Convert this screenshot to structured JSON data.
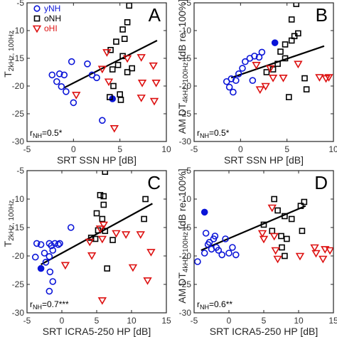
{
  "colors": {
    "yNH": "#0a14d8",
    "oNH": "#000000",
    "oHI": "#dd1111",
    "fit": "#000000",
    "axis": "#262626"
  },
  "legend": {
    "placement": "top-left of panel A",
    "entries": [
      {
        "label": "yNH",
        "marker": "circle",
        "color": "#0a14d8"
      },
      {
        "label": "oNH",
        "marker": "square",
        "color": "#000000"
      },
      {
        "label": "oHI",
        "marker": "triangle-down",
        "color": "#dd1111"
      }
    ]
  },
  "chart_data": [
    {
      "type": "scatter",
      "panel": "A",
      "xlabel": "SRT SSN HP [dB]",
      "ylabel": "AM DT",
      "ylabel_sub1": "2kHz, 100Hz",
      "ylabel_tail": "",
      "xlim": [
        -5,
        10
      ],
      "ylim": [
        -30,
        -5
      ],
      "xticks": [
        -5,
        0,
        5,
        10
      ],
      "yticks": [
        -30,
        -25,
        -20,
        -15,
        -10,
        -5
      ],
      "annotation": {
        "prefix": "r",
        "sub": "NH",
        "rest": "=0.5*"
      },
      "fit": [
        [
          -1,
          -20.3
        ],
        [
          9,
          -11.8
        ]
      ],
      "series": [
        {
          "name": "yNH",
          "marker": "circle",
          "points": [
            [
              -2.3,
              -18.0
            ],
            [
              -1.8,
              -19.2
            ],
            [
              -1.5,
              -17.8
            ],
            [
              -1.3,
              -20.1
            ],
            [
              -1.0,
              -18.0
            ],
            [
              -0.8,
              -21.0
            ],
            [
              -0.2,
              -15.6
            ],
            [
              0.0,
              -23.0
            ],
            [
              1.5,
              -16.0
            ],
            [
              2.0,
              -18.0
            ],
            [
              2.5,
              -18.5
            ],
            [
              3.1,
              -26.2
            ]
          ]
        },
        {
          "name": "yNH filled",
          "marker": "circle-filled",
          "points": [
            [
              4.2,
              -22.3
            ]
          ]
        },
        {
          "name": "oNH",
          "marker": "square",
          "points": [
            [
              4.0,
              -13.5
            ],
            [
              4.2,
              -17.0
            ],
            [
              4.6,
              -12.0
            ],
            [
              4.8,
              -16.2
            ],
            [
              5.3,
              -14.6
            ],
            [
              5.5,
              -11.5
            ],
            [
              5.8,
              -17.5
            ],
            [
              6.3,
              -16.8
            ],
            [
              6.0,
              -5.5
            ],
            [
              5.8,
              -8.5
            ],
            [
              5.3,
              -9.8
            ],
            [
              4.3,
              -20.0
            ],
            [
              3.9,
              -22.0
            ],
            [
              5.0,
              -21.5
            ],
            [
              5.1,
              -22.5
            ]
          ]
        },
        {
          "name": "oHI",
          "marker": "triangle-down",
          "points": [
            [
              0.3,
              -21.6
            ],
            [
              3.1,
              -16.9
            ],
            [
              3.6,
              -13.9
            ],
            [
              3.8,
              -19.2
            ],
            [
              5.8,
              -15.0
            ],
            [
              7.3,
              -14.8
            ],
            [
              7.4,
              -19.4
            ],
            [
              7.3,
              -22.1
            ],
            [
              8.6,
              -16.3
            ],
            [
              8.9,
              -19.4
            ],
            [
              8.7,
              -22.7
            ],
            [
              4.4,
              -27.6
            ]
          ]
        }
      ]
    },
    {
      "type": "scatter",
      "panel": "B",
      "xlabel": "SRT SSN HP [dB]",
      "ylabel": "AM DT",
      "ylabel_sub1": "4kHz, 100Hz",
      "ylabel_tail": " [dB re. 100%]",
      "xlim": [
        -5,
        10
      ],
      "ylim": [
        -30,
        -5
      ],
      "xticks": [
        -5,
        0,
        5,
        10
      ],
      "yticks": [
        -30,
        -25,
        -20,
        -15,
        -10,
        -5
      ],
      "annotation": {
        "prefix": "r",
        "sub": "NH",
        "rest": "=0.5*"
      },
      "fit": [
        [
          -1,
          -18.5
        ],
        [
          9,
          -12.8
        ]
      ],
      "series": [
        {
          "name": "yNH",
          "marker": "circle",
          "points": [
            [
              -1.5,
              -19.2
            ],
            [
              -1.2,
              -20.2
            ],
            [
              -1.0,
              -18.7
            ],
            [
              -0.8,
              -21.1
            ],
            [
              -0.5,
              -19.0
            ],
            [
              -0.2,
              -17.8
            ],
            [
              0.2,
              -16.8
            ],
            [
              0.5,
              -15.6
            ],
            [
              1.0,
              -15.0
            ],
            [
              1.5,
              -14.6
            ],
            [
              2.0,
              -14.8
            ],
            [
              2.3,
              -13.9
            ],
            [
              1.3,
              -19.0
            ]
          ]
        },
        {
          "name": "yNH filled",
          "marker": "circle-filled",
          "points": [
            [
              3.7,
              -12.2
            ]
          ]
        },
        {
          "name": "oNH",
          "marker": "square",
          "points": [
            [
              2.8,
              -17.5
            ],
            [
              3.5,
              -17.0
            ],
            [
              4.0,
              -16.0
            ],
            [
              4.3,
              -13.8
            ],
            [
              4.8,
              -12.5
            ],
            [
              5.5,
              -11.8
            ],
            [
              5.8,
              -11.0
            ],
            [
              6.2,
              -10.5
            ],
            [
              6.0,
              -5.2
            ],
            [
              5.5,
              -8.0
            ],
            [
              4.8,
              -15.0
            ],
            [
              6.9,
              -18.6
            ],
            [
              7.1,
              -20.6
            ],
            [
              5.2,
              -22.0
            ]
          ]
        },
        {
          "name": "oHI",
          "marker": "triangle-down",
          "points": [
            [
              1.7,
              -16.2
            ],
            [
              2.1,
              -20.6
            ],
            [
              2.7,
              -20.0
            ],
            [
              3.2,
              -16.8
            ],
            [
              3.5,
              -18.5
            ],
            [
              4.6,
              -18.5
            ],
            [
              6.2,
              -16.0
            ],
            [
              8.5,
              -18.4
            ],
            [
              9.2,
              -18.6
            ],
            [
              9.5,
              -18.4
            ]
          ]
        }
      ]
    },
    {
      "type": "scatter",
      "panel": "C",
      "xlabel": "SRT ICRA5-250 HP [dB]",
      "ylabel": "AM DT",
      "ylabel_sub1": "2kHz, 100Hz",
      "ylabel_tail": "",
      "xlim": [
        -5,
        15
      ],
      "ylim": [
        -30,
        -5
      ],
      "xticks": [
        -5,
        0,
        5,
        10,
        15
      ],
      "yticks": [
        -30,
        -25,
        -20,
        -15,
        -10,
        -5
      ],
      "annotation": {
        "prefix": "r",
        "sub": "NH",
        "rest": "=0.7***"
      },
      "fit": [
        [
          -3,
          -21.5
        ],
        [
          13,
          -10.8
        ]
      ],
      "series": [
        {
          "name": "yNH",
          "marker": "circle",
          "points": [
            [
              -3.8,
              -20.2
            ],
            [
              -3.6,
              -17.8
            ],
            [
              -3.0,
              -18.0
            ],
            [
              -2.5,
              -19.5
            ],
            [
              -2.3,
              -21.1
            ],
            [
              -1.8,
              -20.1
            ],
            [
              -1.8,
              -17.8
            ],
            [
              -1.5,
              -18.2
            ],
            [
              -1.3,
              -19.0
            ],
            [
              -1.0,
              -17.8
            ],
            [
              -0.5,
              -18.0
            ],
            [
              -0.3,
              -17.8
            ],
            [
              -1.7,
              -22.8
            ],
            [
              -1.3,
              -24.5
            ],
            [
              -1.8,
              -26.2
            ],
            [
              1.3,
              -15.0
            ]
          ]
        },
        {
          "name": "yNH filled",
          "marker": "circle-filled",
          "points": [
            [
              -3.0,
              -22.2
            ]
          ]
        },
        {
          "name": "oNH",
          "marker": "square",
          "points": [
            [
              4.2,
              -16.8
            ],
            [
              4.8,
              -17.0
            ],
            [
              5.2,
              -15.5
            ],
            [
              5.8,
              -13.5
            ],
            [
              6.0,
              -11.0
            ],
            [
              6.2,
              -15.6
            ],
            [
              6.5,
              -22.2
            ],
            [
              7.3,
              -17.2
            ],
            [
              5.5,
              -9.3
            ],
            [
              6.0,
              -9.5
            ],
            [
              6.2,
              -5.2
            ],
            [
              5.0,
              -12.5
            ],
            [
              11.8,
              -13.5
            ],
            [
              12.0,
              -10.0
            ]
          ]
        },
        {
          "name": "oHI",
          "marker": "triangle-down",
          "points": [
            [
              0.5,
              -21.6
            ],
            [
              4.0,
              -17.5
            ],
            [
              4.3,
              -19.9
            ],
            [
              5.5,
              -15.2
            ],
            [
              5.8,
              -17.0
            ],
            [
              6.0,
              -14.5
            ],
            [
              7.8,
              -16.0
            ],
            [
              9.2,
              -16.2
            ],
            [
              10.2,
              -22.0
            ],
            [
              11.3,
              -16.2
            ],
            [
              12.8,
              -19.3
            ],
            [
              12.3,
              -24.3
            ],
            [
              5.8,
              -27.8
            ]
          ]
        }
      ]
    },
    {
      "type": "scatter",
      "panel": "D",
      "xlabel": "SRT ICRA5-250 HP [dB]",
      "ylabel": "AM DT",
      "ylabel_sub1": "4kHz, 100Hz",
      "ylabel_tail": " [dB re. 100%]",
      "xlim": [
        -5,
        15
      ],
      "ylim": [
        -30,
        -5
      ],
      "xticks": [
        -5,
        0,
        5,
        10,
        15
      ],
      "yticks": [
        -30,
        -25,
        -20,
        -15,
        -10,
        -5
      ],
      "annotation": {
        "prefix": "r",
        "sub": "NH",
        "rest": "=0.6**"
      },
      "fit": [
        [
          -4,
          -19.0
        ],
        [
          11,
          -11.2
        ]
      ],
      "series": [
        {
          "name": "yNH",
          "marker": "circle",
          "points": [
            [
              -4.5,
              -21.0
            ],
            [
              -3.5,
              -19.5
            ],
            [
              -3.0,
              -18.0
            ],
            [
              -2.5,
              -18.8
            ],
            [
              -2.2,
              -17.0
            ],
            [
              -2.0,
              -16.5
            ],
            [
              -1.8,
              -18.5
            ],
            [
              -1.5,
              -19.0
            ],
            [
              -1.0,
              -19.8
            ],
            [
              -0.5,
              -17.0
            ],
            [
              0.0,
              -19.5
            ],
            [
              0.5,
              -18.5
            ],
            [
              -3.3,
              -16.0
            ],
            [
              -2.8,
              -17.6
            ],
            [
              1.0,
              -19.8
            ]
          ]
        },
        {
          "name": "yNH filled",
          "marker": "circle-filled",
          "points": [
            [
              -3.5,
              -12.3
            ]
          ]
        },
        {
          "name": "oNH",
          "marker": "square",
          "points": [
            [
              5.0,
              -14.5
            ],
            [
              6.2,
              -15.6
            ],
            [
              7.5,
              -16.5
            ],
            [
              7.6,
              -18.5
            ],
            [
              8.0,
              -20.0
            ],
            [
              8.0,
              -13.0
            ],
            [
              8.3,
              -17.0
            ],
            [
              9.0,
              -13.5
            ],
            [
              10.3,
              -11.2
            ],
            [
              10.5,
              -15.6
            ],
            [
              10.8,
              -10.5
            ],
            [
              7.0,
              -12.0
            ],
            [
              6.5,
              -10.0
            ]
          ]
        },
        {
          "name": "oHI",
          "marker": "triangle-down",
          "points": [
            [
              6.2,
              -11.5
            ],
            [
              5.0,
              -17.0
            ],
            [
              4.8,
              -16.0
            ],
            [
              6.5,
              -16.5
            ],
            [
              6.7,
              -19.0
            ],
            [
              7.0,
              -20.5
            ],
            [
              10.2,
              -20.0
            ],
            [
              12.3,
              -18.5
            ],
            [
              13.8,
              -18.8
            ],
            [
              13.5,
              -20.5
            ],
            [
              12.5,
              -19.5
            ],
            [
              14.5,
              -19.0
            ]
          ]
        }
      ]
    }
  ]
}
